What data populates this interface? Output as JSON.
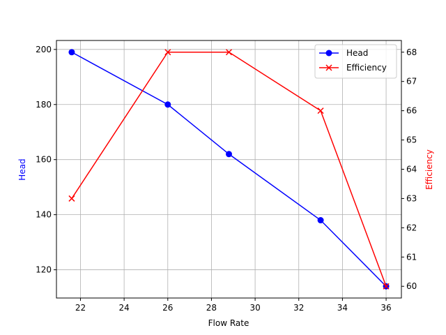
{
  "chart_data": {
    "type": "line",
    "title": "",
    "xlabel": "Flow Rate",
    "ylabel": "Head",
    "y2label": "Efficiency",
    "x": [
      21.6,
      26.0,
      28.8,
      33.0,
      36.0
    ],
    "series": [
      {
        "name": "Head",
        "axis": "left",
        "color": "#0000ff",
        "marker": "circle",
        "values": [
          199,
          180,
          162,
          138,
          114
        ]
      },
      {
        "name": "Efficiency",
        "axis": "right",
        "color": "#ff0000",
        "marker": "x",
        "values": [
          63,
          68,
          68,
          66,
          60
        ]
      }
    ],
    "xlim": [
      20.9,
      36.7
    ],
    "ylim": [
      109.75,
      203.25
    ],
    "y2lim": [
      59.6,
      68.4
    ],
    "xticks": [
      22,
      24,
      26,
      28,
      30,
      32,
      34,
      36
    ],
    "yticks": [
      120,
      140,
      160,
      180,
      200
    ],
    "y2ticks": [
      60,
      61,
      62,
      63,
      64,
      65,
      66,
      67,
      68
    ],
    "grid": true,
    "legend_position": "upper right"
  },
  "legend": {
    "items": [
      {
        "label": "Head",
        "color": "#0000ff"
      },
      {
        "label": "Efficiency",
        "color": "#ff0000"
      }
    ]
  }
}
